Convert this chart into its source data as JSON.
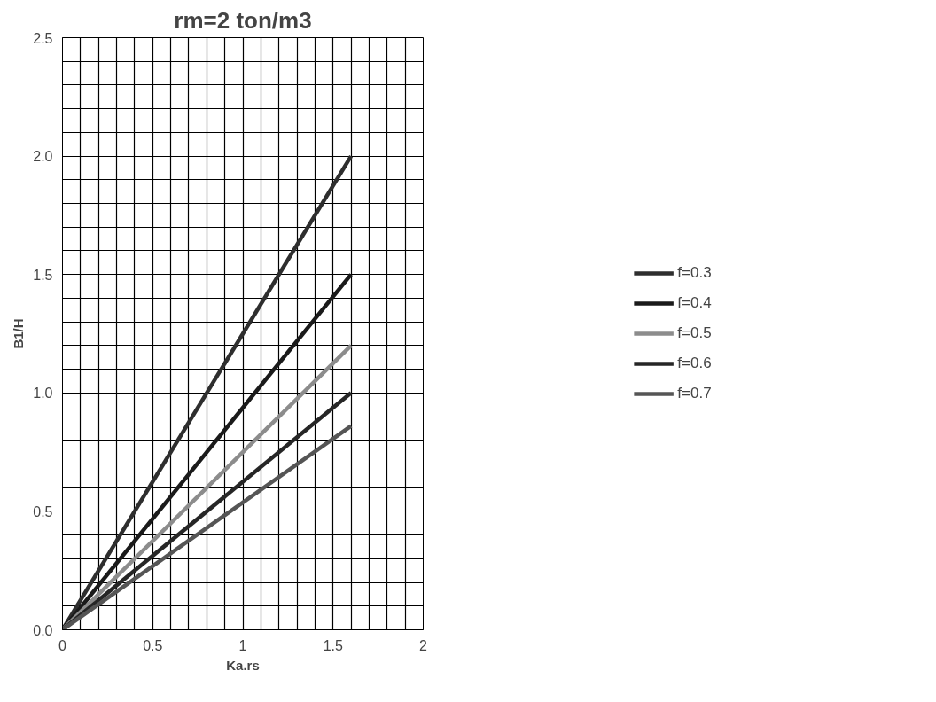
{
  "chart_data": {
    "type": "line",
    "title": "rm=2 ton/m3",
    "xlabel": "Ka.rs",
    "ylabel": "B1/H",
    "x": [
      0,
      1.6
    ],
    "series": [
      {
        "name": "f=0.3",
        "color": "#2e2e2e",
        "values": [
          0,
          2.0
        ]
      },
      {
        "name": "f=0.4",
        "color": "#1a1a1a",
        "values": [
          0,
          1.5
        ]
      },
      {
        "name": "f=0.5",
        "color": "#8c8c8c",
        "values": [
          0,
          1.2
        ]
      },
      {
        "name": "f=0.6",
        "color": "#262626",
        "values": [
          0,
          1.0
        ]
      },
      {
        "name": "f=0.7",
        "color": "#555555",
        "values": [
          0,
          0.86
        ]
      }
    ],
    "xlim": [
      0,
      2
    ],
    "ylim": [
      0,
      2.5
    ],
    "xticks": [
      0,
      {
        "value": 0.1,
        "label": null
      },
      {
        "value": 0.2,
        "label": null
      },
      {
        "value": 0.3,
        "label": null
      },
      {
        "value": 0.4,
        "label": null
      },
      0.5,
      {
        "value": 0.6,
        "label": null
      },
      {
        "value": 0.7,
        "label": null
      },
      {
        "value": 0.8,
        "label": null
      },
      {
        "value": 0.9,
        "label": null
      },
      1,
      {
        "value": 1.1,
        "label": null
      },
      {
        "value": 1.2,
        "label": null
      },
      {
        "value": 1.3,
        "label": null
      },
      {
        "value": 1.4,
        "label": null
      },
      1.5,
      {
        "value": 1.6,
        "label": null
      },
      {
        "value": 1.7,
        "label": null
      },
      {
        "value": 1.8,
        "label": null
      },
      {
        "value": 1.9,
        "label": null
      },
      2
    ],
    "yticks": [
      {
        "value": 0,
        "label": "0.0"
      },
      {
        "value": 0.1,
        "label": null
      },
      {
        "value": 0.2,
        "label": null
      },
      {
        "value": 0.3,
        "label": null
      },
      {
        "value": 0.4,
        "label": null
      },
      {
        "value": 0.5,
        "label": "0.5"
      },
      {
        "value": 0.6,
        "label": null
      },
      {
        "value": 0.7,
        "label": null
      },
      {
        "value": 0.8,
        "label": null
      },
      {
        "value": 0.9,
        "label": null
      },
      {
        "value": 1,
        "label": "1.0"
      },
      {
        "value": 1.1,
        "label": null
      },
      {
        "value": 1.2,
        "label": null
      },
      {
        "value": 1.3,
        "label": null
      },
      {
        "value": 1.4,
        "label": null
      },
      {
        "value": 1.5,
        "label": "1.5"
      },
      {
        "value": 1.6,
        "label": null
      },
      {
        "value": 1.7,
        "label": null
      },
      {
        "value": 1.8,
        "label": null
      },
      {
        "value": 1.9,
        "label": null
      },
      {
        "value": 2,
        "label": "2.0"
      },
      {
        "value": 2.1,
        "label": null
      },
      {
        "value": 2.2,
        "label": null
      },
      {
        "value": 2.3,
        "label": null
      },
      {
        "value": 2.4,
        "label": null
      },
      {
        "value": 2.5,
        "label": "2.5"
      }
    ],
    "grid": true,
    "legend": "right",
    "marker": "none",
    "line_style": "solid"
  }
}
